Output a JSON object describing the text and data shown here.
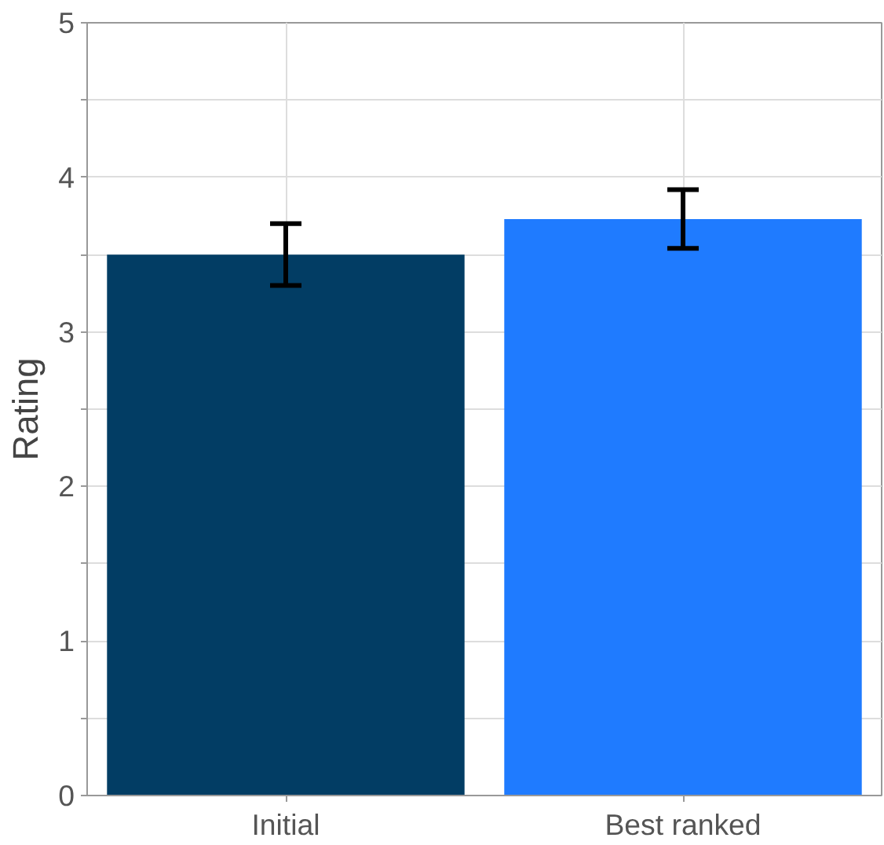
{
  "chart_data": {
    "type": "bar",
    "ylabel": "Rating",
    "categories": [
      "Initial",
      "Best ranked"
    ],
    "values": [
      3.5,
      3.73
    ],
    "colors": [
      "#023d64",
      "#1f7bff"
    ],
    "errors": [
      0.2,
      0.19
    ],
    "ylim": [
      0,
      5
    ],
    "yticks": [
      0,
      {
        "value": 0.5,
        "label": null
      },
      1,
      {
        "value": 1.5,
        "label": null
      },
      2,
      {
        "value": 2.5,
        "label": null
      },
      3,
      {
        "value": 3.5,
        "label": null
      },
      4,
      {
        "value": 4.5,
        "label": null
      },
      5
    ],
    "grid": true
  }
}
